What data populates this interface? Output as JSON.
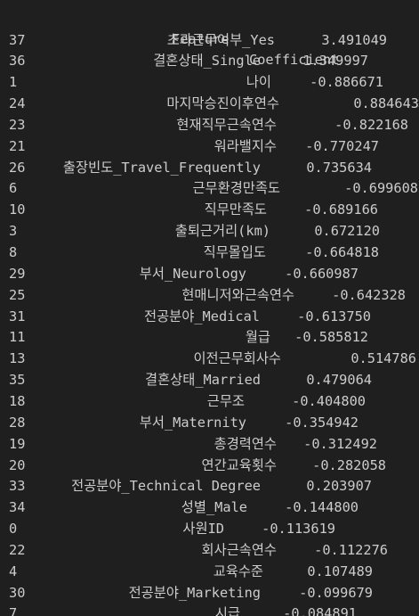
{
  "header": {
    "feature_label": "Feature",
    "coef_label": "Coefficient"
  },
  "rows": [
    {
      "index": "37",
      "feature": "초과근무여부_Yes",
      "coefficient": "3.491049"
    },
    {
      "index": "36",
      "feature": "결혼상태_Single",
      "coefficient": "1.349997"
    },
    {
      "index": "1",
      "feature": "나이",
      "coefficient": "-0.886671"
    },
    {
      "index": "24",
      "feature": "마지막승진이후연수",
      "coefficient": "0.884643"
    },
    {
      "index": "23",
      "feature": "현재직무근속연수",
      "coefficient": "-0.822168"
    },
    {
      "index": "21",
      "feature": "워라밸지수",
      "coefficient": "-0.770247"
    },
    {
      "index": "26",
      "feature": "출장빈도_Travel_Frequently",
      "coefficient": "0.735634"
    },
    {
      "index": "6",
      "feature": "근무환경만족도",
      "coefficient": "-0.699608"
    },
    {
      "index": "10",
      "feature": "직무만족도",
      "coefficient": "-0.689166"
    },
    {
      "index": "3",
      "feature": "출퇴근거리(km)",
      "coefficient": "0.672120"
    },
    {
      "index": "8",
      "feature": "직무몰입도",
      "coefficient": "-0.664818"
    },
    {
      "index": "29",
      "feature": "부서_Neurology",
      "coefficient": "-0.660987"
    },
    {
      "index": "25",
      "feature": "현매니저와근속연수",
      "coefficient": "-0.642328"
    },
    {
      "index": "31",
      "feature": "전공분야_Medical",
      "coefficient": "-0.613750"
    },
    {
      "index": "11",
      "feature": "월급",
      "coefficient": "-0.585812"
    },
    {
      "index": "13",
      "feature": "이전근무회사수",
      "coefficient": "0.514786"
    },
    {
      "index": "35",
      "feature": "결혼상태_Married",
      "coefficient": "0.479064"
    },
    {
      "index": "18",
      "feature": "근무조",
      "coefficient": "-0.404800"
    },
    {
      "index": "28",
      "feature": "부서_Maternity",
      "coefficient": "-0.354942"
    },
    {
      "index": "19",
      "feature": "총경력연수",
      "coefficient": "-0.312492"
    },
    {
      "index": "20",
      "feature": "연간교육횟수",
      "coefficient": "-0.282058"
    },
    {
      "index": "33",
      "feature": "전공분야_Technical Degree",
      "coefficient": "0.203907"
    },
    {
      "index": "34",
      "feature": "성별_Male",
      "coefficient": "-0.144800"
    },
    {
      "index": "0",
      "feature": "사원ID",
      "coefficient": "-0.113619"
    },
    {
      "index": "22",
      "feature": "회사근속연수",
      "coefficient": "-0.112276"
    },
    {
      "index": "4",
      "feature": "교육수준",
      "coefficient": "0.107489"
    },
    {
      "index": "30",
      "feature": "전공분야_Marketing",
      "coefficient": "-0.099679"
    },
    {
      "index": "7",
      "feature": "시급",
      "coefficient": "-0.084891"
    }
  ]
}
